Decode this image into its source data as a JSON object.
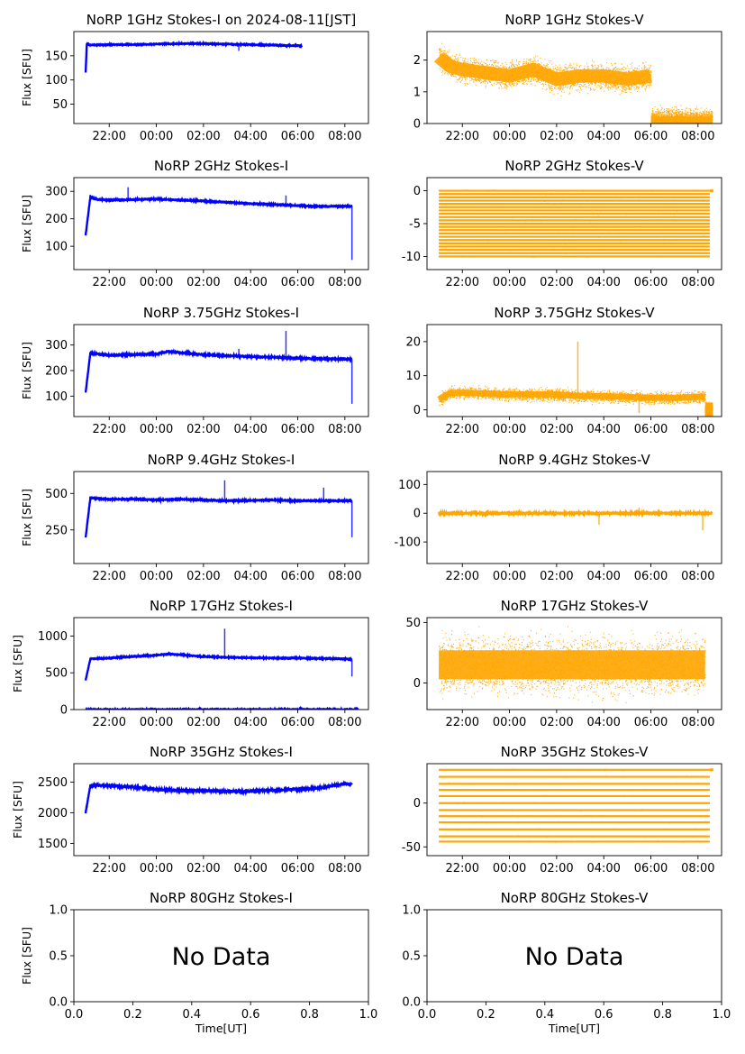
{
  "figure": {
    "x_tick_labels": [
      "22:00",
      "00:00",
      "02:00",
      "04:00",
      "06:00",
      "08:00"
    ],
    "x_axis_label": "Time[UT]",
    "y_axis_label": "Flux [SFU]",
    "no_data_text": "No Data"
  },
  "chart_data": [
    {
      "type": "scatter",
      "title": "NoRP 1GHz Stokes-I on 2024-08-11[JST]",
      "ylabel": "Flux [SFU]",
      "color": "#0000ff",
      "xlim_hours": [
        20.5,
        33.0
      ],
      "ylim": [
        10,
        200
      ],
      "yticks": [
        50,
        100,
        150
      ],
      "x_tick_hours": [
        22,
        24,
        26,
        28,
        30,
        32
      ],
      "series": [
        {
          "t_hours": [
            21.0,
            21.05,
            21.2,
            22.0,
            23.0,
            24.0,
            25.0,
            26.0,
            27.0,
            28.0,
            29.0,
            29.5,
            30.0,
            30.2
          ],
          "flux": [
            115,
            175,
            172,
            173,
            173,
            174,
            175,
            175,
            174,
            173,
            172,
            171,
            171,
            170
          ]
        }
      ],
      "noise": 1.5,
      "spikes": [
        [
          27.5,
          160
        ]
      ]
    },
    {
      "type": "scatter",
      "title": "NoRP 1GHz Stokes-V",
      "ylabel": "",
      "color": "#ffa500",
      "xlim_hours": [
        20.5,
        33.0
      ],
      "ylim": [
        0,
        2.9
      ],
      "yticks": [
        0,
        1,
        2
      ],
      "x_tick_hours": [
        22,
        24,
        26,
        28,
        30,
        32
      ],
      "series": [
        {
          "t_hours": [
            21.0,
            21.5,
            22.0,
            23.0,
            24.0,
            25.0,
            26.0,
            27.0,
            28.0,
            29.0,
            30.0
          ],
          "flux": [
            2.1,
            1.8,
            1.7,
            1.6,
            1.5,
            1.7,
            1.4,
            1.5,
            1.5,
            1.4,
            1.5
          ]
        },
        {
          "t_hours": [
            30.0,
            32.6
          ],
          "flux": [
            0.02,
            0.02
          ]
        }
      ],
      "noise": 0.35,
      "spikes": []
    },
    {
      "type": "scatter",
      "title": "NoRP 2GHz Stokes-I",
      "ylabel": "Flux [SFU]",
      "color": "#0000ff",
      "xlim_hours": [
        20.5,
        33.0
      ],
      "ylim": [
        15,
        350
      ],
      "yticks": [
        100,
        200,
        300
      ],
      "x_tick_hours": [
        22,
        24,
        26,
        28,
        30,
        32
      ],
      "series": [
        {
          "t_hours": [
            21.0,
            21.2,
            21.5,
            22.0,
            23.0,
            24.0,
            25.0,
            26.0,
            27.0,
            28.0,
            29.0,
            30.0,
            31.0,
            32.0,
            32.3
          ],
          "flux": [
            140,
            280,
            270,
            268,
            270,
            272,
            268,
            265,
            260,
            255,
            252,
            248,
            245,
            246,
            245
          ]
        }
      ],
      "noise": 3,
      "spikes": [
        [
          22.8,
          315
        ],
        [
          29.5,
          285
        ],
        [
          32.3,
          50
        ]
      ]
    },
    {
      "type": "scatter",
      "title": "NoRP 2GHz Stokes-V",
      "ylabel": "",
      "color": "#ffa500",
      "xlim_hours": [
        20.5,
        33.0
      ],
      "ylim": [
        -12,
        2
      ],
      "yticks": [
        0,
        -5,
        -10
      ],
      "x_tick_hours": [
        22,
        24,
        26,
        28,
        30,
        32
      ],
      "levels": [
        0,
        -0.5,
        -1,
        -1.5,
        -2,
        -2.5,
        -3,
        -3.5,
        -4,
        -4.5,
        -5,
        -5.5,
        -6,
        -6.5,
        -7,
        -7.5,
        -8,
        -8.5,
        -9,
        -9.5,
        -10
      ],
      "level_range_hours": [
        21.0,
        32.5
      ]
    },
    {
      "type": "scatter",
      "title": "NoRP 3.75GHz Stokes-I",
      "ylabel": "Flux [SFU]",
      "color": "#0000ff",
      "xlim_hours": [
        20.5,
        33.0
      ],
      "ylim": [
        20,
        380
      ],
      "yticks": [
        100,
        200,
        300
      ],
      "x_tick_hours": [
        22,
        24,
        26,
        28,
        30,
        32
      ],
      "series": [
        {
          "t_hours": [
            21.0,
            21.2,
            21.5,
            22.0,
            23.0,
            24.0,
            24.5,
            25.0,
            26.0,
            27.0,
            28.0,
            29.0,
            30.0,
            31.0,
            32.0,
            32.3
          ],
          "flux": [
            115,
            270,
            265,
            260,
            262,
            265,
            275,
            270,
            262,
            258,
            255,
            252,
            248,
            246,
            245,
            245
          ]
        }
      ],
      "noise": 4,
      "spikes": [
        [
          29.5,
          355
        ],
        [
          27.5,
          285
        ],
        [
          32.3,
          70
        ]
      ]
    },
    {
      "type": "scatter",
      "title": "NoRP 3.75GHz Stokes-V",
      "ylabel": "",
      "color": "#ffa500",
      "xlim_hours": [
        20.5,
        33.0
      ],
      "ylim": [
        -2,
        25
      ],
      "yticks": [
        0,
        10,
        20
      ],
      "x_tick_hours": [
        22,
        24,
        26,
        28,
        30,
        32
      ],
      "series": [
        {
          "t_hours": [
            21.0,
            21.5,
            22.0,
            23.0,
            24.0,
            25.0,
            26.0,
            27.0,
            28.0,
            29.0,
            30.0,
            31.0,
            32.0,
            32.3
          ],
          "flux": [
            3,
            5,
            5,
            4.8,
            4.5,
            4.5,
            4.5,
            4,
            4,
            3.8,
            3.5,
            3.5,
            3.8,
            3.8
          ]
        },
        {
          "t_hours": [
            32.3,
            32.6
          ],
          "flux": [
            0,
            0
          ]
        }
      ],
      "noise": 1.5,
      "spikes": [
        [
          26.9,
          20
        ],
        [
          29.5,
          -1
        ]
      ]
    },
    {
      "type": "scatter",
      "title": "NoRP 9.4GHz Stokes-I",
      "ylabel": "Flux [SFU]",
      "color": "#0000ff",
      "xlim_hours": [
        20.5,
        33.0
      ],
      "ylim": [
        20,
        650
      ],
      "yticks": [
        250,
        500
      ],
      "x_tick_hours": [
        22,
        24,
        26,
        28,
        30,
        32
      ],
      "series": [
        {
          "t_hours": [
            21.0,
            21.2,
            21.5,
            22.0,
            23.0,
            24.0,
            25.0,
            26.0,
            27.0,
            28.0,
            29.0,
            30.0,
            31.0,
            32.0,
            32.3
          ],
          "flux": [
            200,
            470,
            465,
            460,
            462,
            455,
            460,
            455,
            450,
            452,
            455,
            450,
            450,
            450,
            450
          ]
        }
      ],
      "noise": 6,
      "spikes": [
        [
          26.9,
          590
        ],
        [
          31.1,
          540
        ],
        [
          32.3,
          200
        ]
      ]
    },
    {
      "type": "scatter",
      "title": "NoRP 9.4GHz Stokes-V",
      "ylabel": "",
      "color": "#ffa500",
      "xlim_hours": [
        20.5,
        33.0
      ],
      "ylim": [
        -175,
        145
      ],
      "yticks": [
        100,
        0,
        -100
      ],
      "x_tick_hours": [
        22,
        24,
        26,
        28,
        30,
        32
      ],
      "series": [
        {
          "t_hours": [
            21.0,
            32.6
          ],
          "flux": [
            0,
            0
          ]
        }
      ],
      "noise": 4,
      "spikes": [
        [
          27.8,
          -40
        ],
        [
          32.2,
          -60
        ],
        [
          29.5,
          20
        ]
      ]
    },
    {
      "type": "scatter",
      "title": "NoRP 17GHz Stokes-I",
      "ylabel": "Flux [SFU]",
      "color": "#0000ff",
      "xlim_hours": [
        20.5,
        33.0
      ],
      "ylim": [
        0,
        1250
      ],
      "yticks": [
        0,
        500,
        1000
      ],
      "x_tick_hours": [
        22,
        24,
        26,
        28,
        30,
        32
      ],
      "series": [
        {
          "t_hours": [
            21.0,
            21.2,
            22.0,
            23.0,
            24.0,
            24.5,
            25.0,
            26.0,
            27.0,
            28.0,
            29.0,
            30.0,
            31.0,
            32.0,
            32.3
          ],
          "flux": [
            400,
            690,
            700,
            720,
            740,
            755,
            745,
            720,
            710,
            705,
            700,
            700,
            695,
            690,
            680
          ]
        },
        {
          "t_hours": [
            21.0,
            32.6
          ],
          "flux": [
            0,
            0
          ]
        }
      ],
      "noise": 10,
      "spikes": [
        [
          26.9,
          1100
        ],
        [
          32.3,
          450
        ]
      ]
    },
    {
      "type": "scatter",
      "title": "NoRP 17GHz Stokes-V",
      "ylabel": "",
      "color": "#ffa500",
      "xlim_hours": [
        20.5,
        33.0
      ],
      "ylim": [
        -22,
        54
      ],
      "yticks": [
        0,
        50
      ],
      "x_tick_hours": [
        22,
        24,
        26,
        28,
        30,
        32
      ],
      "series": [
        {
          "t_hours": [
            21.0,
            32.3
          ],
          "flux": [
            15,
            15
          ]
        }
      ],
      "noise": 20,
      "spikes": []
    },
    {
      "type": "scatter",
      "title": "NoRP 35GHz Stokes-I",
      "ylabel": "Flux [SFU]",
      "color": "#0000ff",
      "xlim_hours": [
        20.5,
        33.0
      ],
      "ylim": [
        1300,
        2800
      ],
      "yticks": [
        1500,
        2000,
        2500
      ],
      "x_tick_hours": [
        22,
        24,
        26,
        28,
        30,
        32
      ],
      "series": [
        {
          "t_hours": [
            21.0,
            21.2,
            22.0,
            23.0,
            24.0,
            25.0,
            26.0,
            27.0,
            28.0,
            29.0,
            30.0,
            31.0,
            32.0,
            32.3
          ],
          "flux": [
            2000,
            2450,
            2440,
            2420,
            2380,
            2360,
            2360,
            2350,
            2350,
            2370,
            2380,
            2410,
            2470,
            2460
          ]
        }
      ],
      "noise": 25,
      "spikes": []
    },
    {
      "type": "scatter",
      "title": "NoRP 35GHz Stokes-V",
      "ylabel": "",
      "color": "#ffa500",
      "xlim_hours": [
        20.5,
        33.0
      ],
      "ylim": [
        -60,
        45
      ],
      "yticks": [
        0,
        -50
      ],
      "x_tick_hours": [
        22,
        24,
        26,
        28,
        30,
        32
      ],
      "levels": [
        38,
        30,
        22,
        15,
        8,
        0,
        -8,
        -15,
        -22,
        -30,
        -38,
        -44
      ],
      "level_range_hours": [
        21.0,
        32.5
      ]
    },
    {
      "type": "empty",
      "title": "NoRP 80GHz Stokes-I",
      "ylabel": "Flux [SFU]",
      "xlabel": "Time[UT]",
      "xlim": [
        0,
        1
      ],
      "ylim": [
        0,
        1
      ],
      "xticks": [
        0.0,
        0.2,
        0.4,
        0.6,
        0.8,
        1.0
      ],
      "yticks": [
        0.0,
        0.5,
        1.0
      ],
      "annotation": "No Data"
    },
    {
      "type": "empty",
      "title": "NoRP 80GHz Stokes-V",
      "ylabel": "",
      "xlabel": "Time[UT]",
      "xlim": [
        0,
        1
      ],
      "ylim": [
        0,
        1
      ],
      "xticks": [
        0.0,
        0.2,
        0.4,
        0.6,
        0.8,
        1.0
      ],
      "yticks": [
        0.0,
        0.5,
        1.0
      ],
      "annotation": "No Data"
    }
  ]
}
